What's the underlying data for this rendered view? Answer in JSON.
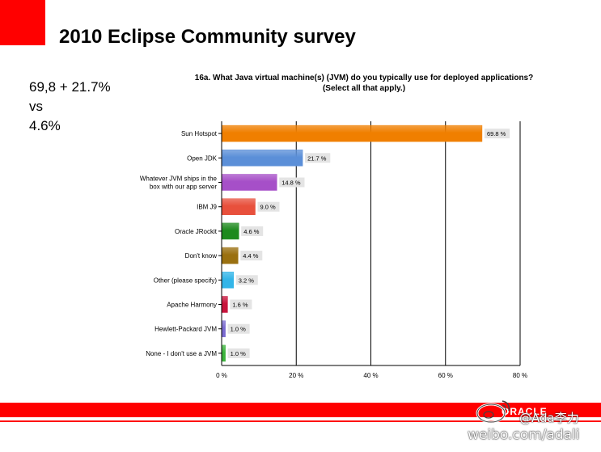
{
  "slide": {
    "title": "2010 Eclipse Community survey",
    "note_lines": [
      "69,8 + 21.7%",
      "vs",
      "4.6%"
    ],
    "brand": "ORACLE",
    "watermark_handle": "@Ada李力",
    "watermark_url": "weibo.com/adali"
  },
  "colors": {
    "accent_red": "#ff0000"
  },
  "chart_data": {
    "type": "bar",
    "orientation": "horizontal",
    "title": "16a. What Java virtual machine(s) (JVM) do you typically use for deployed applications? (Select all that apply.)",
    "title_lines": [
      "16a. What Java virtual machine(s) (JVM) do you typically use for deployed applications?",
      "(Select all that apply.)"
    ],
    "categories": [
      [
        "Sun Hotspot"
      ],
      [
        "Open JDK"
      ],
      [
        "Whatever JVM ships in the",
        "box with our app server"
      ],
      [
        "IBM J9"
      ],
      [
        "Oracle JRockit"
      ],
      [
        "Don't know"
      ],
      [
        "Other (please specify)"
      ],
      [
        "Apache Harmony"
      ],
      [
        "Hewlett-Packard JVM"
      ],
      [
        "None - I don't use a JVM"
      ]
    ],
    "values": [
      69.8,
      21.7,
      14.8,
      9.0,
      4.6,
      4.4,
      3.2,
      1.6,
      1.0,
      1.0
    ],
    "value_labels": [
      "69.8 %",
      "21.7 %",
      "14.8 %",
      "9.0 %",
      "4.6 %",
      "4.4 %",
      "3.2 %",
      "1.6 %",
      "1.0 %",
      "1.0 %"
    ],
    "bar_colors": [
      "#f07f00",
      "#5b8fd8",
      "#a64fc8",
      "#e8503c",
      "#1e8a1e",
      "#9a7010",
      "#33b5e8",
      "#c8143c",
      "#7a6ad0",
      "#3cb43c"
    ],
    "xlim": [
      0,
      80
    ],
    "xticks": [
      0,
      20,
      40,
      60,
      80
    ],
    "xtick_labels": [
      "0 %",
      "20 %",
      "40 %",
      "60 %",
      "80 %"
    ],
    "grid": true
  }
}
